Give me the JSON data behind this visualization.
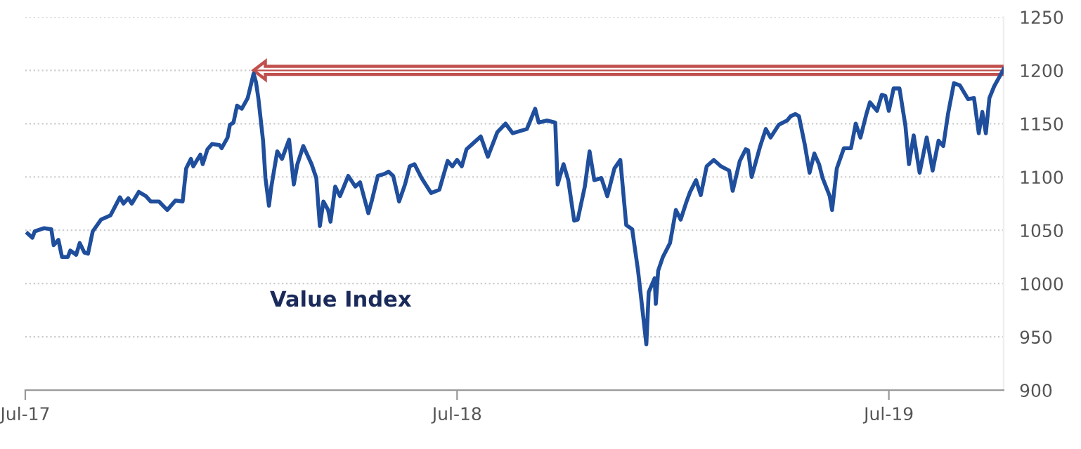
{
  "chart_data": {
    "type": "line",
    "title": "Value Index",
    "x": [
      "2017-07-03",
      "2017-07-07",
      "2017-07-09",
      "2017-07-17",
      "2017-07-23",
      "2017-07-25",
      "2017-07-29",
      "2017-08-01",
      "2017-08-06",
      "2017-08-08",
      "2017-08-13",
      "2017-08-16",
      "2017-08-20",
      "2017-08-23",
      "2017-08-27",
      "2017-09-03",
      "2017-09-11",
      "2017-09-19",
      "2017-09-22",
      "2017-09-26",
      "2017-09-29",
      "2017-10-05",
      "2017-10-11",
      "2017-10-15",
      "2017-10-22",
      "2017-10-29",
      "2017-11-05",
      "2017-11-11",
      "2017-11-14",
      "2017-11-18",
      "2017-11-20",
      "2017-11-26",
      "2017-11-28",
      "2017-12-02",
      "2017-12-06",
      "2017-12-12",
      "2017-12-14",
      "2017-12-19",
      "2017-12-21",
      "2017-12-24",
      "2017-12-27",
      "2017-12-31",
      "2018-01-05",
      "2018-01-10",
      "2018-01-12",
      "2018-01-14",
      "2018-01-18",
      "2018-01-20",
      "2018-01-23",
      "2018-01-25",
      "2018-01-30",
      "2018-02-03",
      "2018-02-09",
      "2018-02-13",
      "2018-02-16",
      "2018-02-21",
      "2018-02-28",
      "2018-03-04",
      "2018-03-07",
      "2018-03-10",
      "2018-03-14",
      "2018-03-16",
      "2018-03-20",
      "2018-03-24",
      "2018-03-31",
      "2018-04-06",
      "2018-04-10",
      "2018-04-17",
      "2018-04-20",
      "2018-04-25",
      "2018-05-01",
      "2018-05-04",
      "2018-05-08",
      "2018-05-13",
      "2018-05-18",
      "2018-05-22",
      "2018-05-26",
      "2018-06-01",
      "2018-06-09",
      "2018-06-16",
      "2018-06-23",
      "2018-06-27",
      "2018-07-01",
      "2018-07-05",
      "2018-07-09",
      "2018-07-15",
      "2018-07-21",
      "2018-07-27",
      "2018-08-04",
      "2018-08-11",
      "2018-08-17",
      "2018-08-29",
      "2018-09-05",
      "2018-09-08",
      "2018-09-15",
      "2018-09-22",
      "2018-09-24",
      "2018-09-29",
      "2018-10-03",
      "2018-10-08",
      "2018-10-11",
      "2018-10-17",
      "2018-10-21",
      "2018-10-25",
      "2018-10-31",
      "2018-11-05",
      "2018-11-11",
      "2018-11-16",
      "2018-11-21",
      "2018-11-26",
      "2018-12-01",
      "2018-12-08",
      "2018-12-10",
      "2018-12-15",
      "2018-12-16",
      "2018-12-18",
      "2018-12-22",
      "2018-12-28",
      "2019-01-02",
      "2019-01-06",
      "2019-01-11",
      "2019-01-14",
      "2019-01-19",
      "2019-01-23",
      "2019-01-28",
      "2019-02-03",
      "2019-02-09",
      "2019-02-16",
      "2019-02-19",
      "2019-02-25",
      "2019-03-02",
      "2019-03-04",
      "2019-03-07",
      "2019-03-14",
      "2019-03-19",
      "2019-03-23",
      "2019-03-30",
      "2019-04-06",
      "2019-04-09",
      "2019-04-13",
      "2019-04-16",
      "2019-04-21",
      "2019-04-25",
      "2019-04-29",
      "2019-05-03",
      "2019-05-06",
      "2019-05-12",
      "2019-05-14",
      "2019-05-18",
      "2019-05-24",
      "2019-05-30",
      "2019-06-03",
      "2019-06-07",
      "2019-06-12",
      "2019-06-15",
      "2019-06-21",
      "2019-06-25",
      "2019-06-28",
      "2019-07-01",
      "2019-07-05",
      "2019-07-10",
      "2019-07-15",
      "2019-07-18",
      "2019-07-22",
      "2019-07-27",
      "2019-08-02",
      "2019-08-07",
      "2019-08-12",
      "2019-08-16",
      "2019-08-20",
      "2019-08-25",
      "2019-08-30",
      "2019-09-06",
      "2019-09-11",
      "2019-09-15",
      "2019-09-18",
      "2019-09-21",
      "2019-09-24",
      "2019-09-28",
      "2019-10-06"
    ],
    "series": [
      {
        "color": "#1f4e9c",
        "values": [
          1047,
          1043,
          1049,
          1052,
          1051,
          1036,
          1041,
          1025,
          1025,
          1031,
          1027,
          1038,
          1029,
          1028,
          1049,
          1060,
          1064,
          1081,
          1075,
          1080,
          1075,
          1086,
          1082,
          1077,
          1077,
          1069,
          1078,
          1077,
          1108,
          1117,
          1110,
          1121,
          1112,
          1126,
          1131,
          1130,
          1127,
          1137,
          1149,
          1151,
          1167,
          1164,
          1174,
          1197,
          1189,
          1174,
          1134,
          1099,
          1073,
          1091,
          1124,
          1117,
          1135,
          1093,
          1112,
          1129,
          1112,
          1099,
          1054,
          1077,
          1069,
          1058,
          1091,
          1082,
          1101,
          1091,
          1095,
          1066,
          1078,
          1101,
          1103,
          1105,
          1101,
          1077,
          1093,
          1110,
          1112,
          1099,
          1085,
          1088,
          1115,
          1110,
          1116,
          1110,
          1126,
          1132,
          1138,
          1119,
          1142,
          1150,
          1141,
          1145,
          1164,
          1151,
          1153,
          1151,
          1093,
          1112,
          1097,
          1059,
          1060,
          1091,
          1124,
          1097,
          1099,
          1082,
          1108,
          1116,
          1055,
          1051,
          1012,
          943,
          992,
          1005,
          981,
          1012,
          1025,
          1038,
          1069,
          1060,
          1077,
          1086,
          1097,
          1083,
          1110,
          1116,
          1110,
          1106,
          1087,
          1115,
          1126,
          1125,
          1100,
          1128,
          1145,
          1137,
          1149,
          1153,
          1157,
          1159,
          1157,
          1130,
          1104,
          1122,
          1112,
          1099,
          1082,
          1069,
          1108,
          1127,
          1127,
          1150,
          1137,
          1159,
          1170,
          1162,
          1177,
          1176,
          1162,
          1183,
          1183,
          1148,
          1112,
          1139,
          1104,
          1137,
          1106,
          1134,
          1129,
          1159,
          1188,
          1186,
          1173,
          1174,
          1141,
          1161,
          1141,
          1174,
          1185,
          1201
        ]
      }
    ],
    "xlim": [
      "2017-07-01",
      "2019-10-06"
    ],
    "xticks": [
      {
        "value": "2017-07-01",
        "label": "Jul-17"
      },
      {
        "value": "2018-07-01",
        "label": "Jul-18"
      },
      {
        "value": "2019-07-01",
        "label": "Jul-19"
      }
    ],
    "ylim": [
      900,
      1250
    ],
    "yticks": [
      900,
      950,
      1000,
      1050,
      1100,
      1150,
      1200,
      1250
    ],
    "grid": "y",
    "marker": "none",
    "line_style": "solid",
    "ref_lines": [
      {
        "axis": "y",
        "value": 1200,
        "color": "#c0504d"
      }
    ]
  }
}
